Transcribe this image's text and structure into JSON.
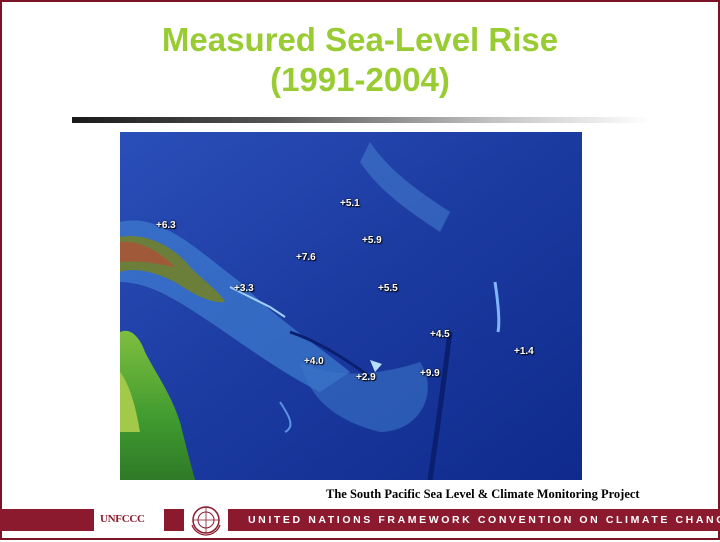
{
  "slide": {
    "title_line1": "Measured Sea-Level Rise",
    "title_line2": "(1991-2004)",
    "caption": "The South Pacific Sea Level & Climate Monitoring Project",
    "footer_text": "UNITED NATIONS FRAMEWORK CONVENTION ON CLIMATE CHANGE",
    "logo_unfccc": "UNFCCC",
    "accent_color": "#99cc33",
    "footer_color": "#8b1a2e"
  },
  "map": {
    "labels": [
      {
        "id": "label-5-1",
        "text": "+5.1"
      },
      {
        "id": "label-6-3",
        "text": "+6.3"
      },
      {
        "id": "label-5-9",
        "text": "+5.9"
      },
      {
        "id": "label-7-6",
        "text": "+7.6"
      },
      {
        "id": "label-3-3",
        "text": "+3.3"
      },
      {
        "id": "label-5-5",
        "text": "+5.5"
      },
      {
        "id": "label-4-5",
        "text": "+4.5"
      },
      {
        "id": "label-1-4",
        "text": "+1.4"
      },
      {
        "id": "label-4-0",
        "text": "+4.0"
      },
      {
        "id": "label-2-9",
        "text": "+2.9"
      },
      {
        "id": "label-9-9",
        "text": "+9.9"
      }
    ]
  }
}
